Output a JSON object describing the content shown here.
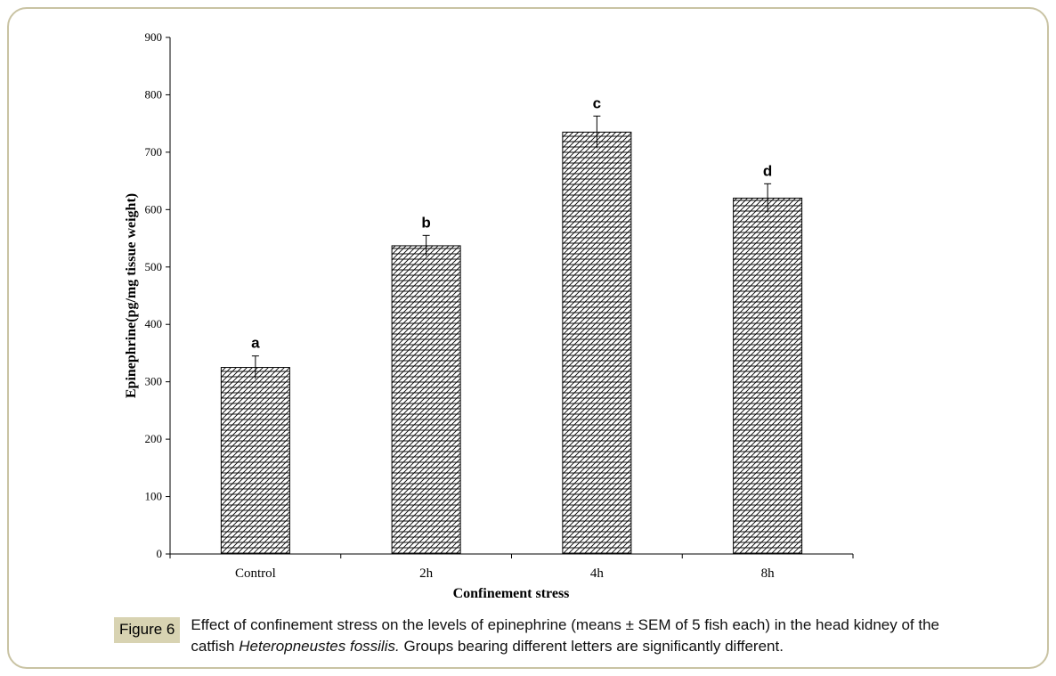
{
  "chart_data": {
    "type": "bar",
    "categories": [
      "Control",
      "2h",
      "4h",
      "8h"
    ],
    "values": [
      325,
      537,
      735,
      620
    ],
    "errors": [
      20,
      18,
      28,
      25
    ],
    "significance_letters": [
      "a",
      "b",
      "c",
      "d"
    ],
    "xlabel": "Confinement stress",
    "ylabel": "Epinephrine(pg/mg tissue weight)",
    "ylim": [
      0,
      900
    ],
    "yticks": [
      0,
      100,
      200,
      300,
      400,
      500,
      600,
      700,
      800,
      900
    ],
    "grid": false,
    "legend": "none",
    "bar_pattern": "hatched"
  },
  "caption": {
    "label": "Figure 6",
    "text_before": "Effect of confinement stress on the levels of epinephrine (means ± SEM of 5 fish each) in the head kidney of the catfish ",
    "species": "Heteropneustes fossilis.",
    "text_after": " Groups bearing different letters are significantly different."
  }
}
